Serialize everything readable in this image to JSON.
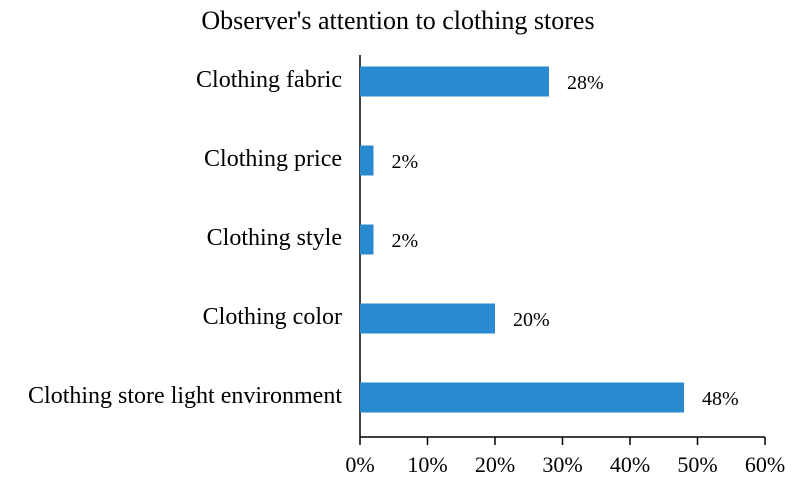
{
  "chart_data": {
    "type": "bar",
    "orientation": "horizontal",
    "title": "Observer's attention to clothing stores",
    "categories": [
      "Clothing fabric",
      "Clothing price",
      "Clothing style",
      "Clothing color",
      "Clothing store light environment"
    ],
    "values": [
      28,
      2,
      2,
      20,
      48
    ],
    "value_labels": [
      "28%",
      "2%",
      "2%",
      "20%",
      "48%"
    ],
    "color": "#2a8ad0",
    "xlim": [
      0,
      60
    ],
    "xticks": [
      {
        "value": 0,
        "label": "0%"
      },
      {
        "value": 10,
        "label": "10%"
      },
      {
        "value": 20,
        "label": "20%"
      },
      {
        "value": 30,
        "label": "30%"
      },
      {
        "value": 40,
        "label": "40%"
      },
      {
        "value": 50,
        "label": "50%"
      },
      {
        "value": 60,
        "label": "60%"
      }
    ],
    "grid": false
  }
}
